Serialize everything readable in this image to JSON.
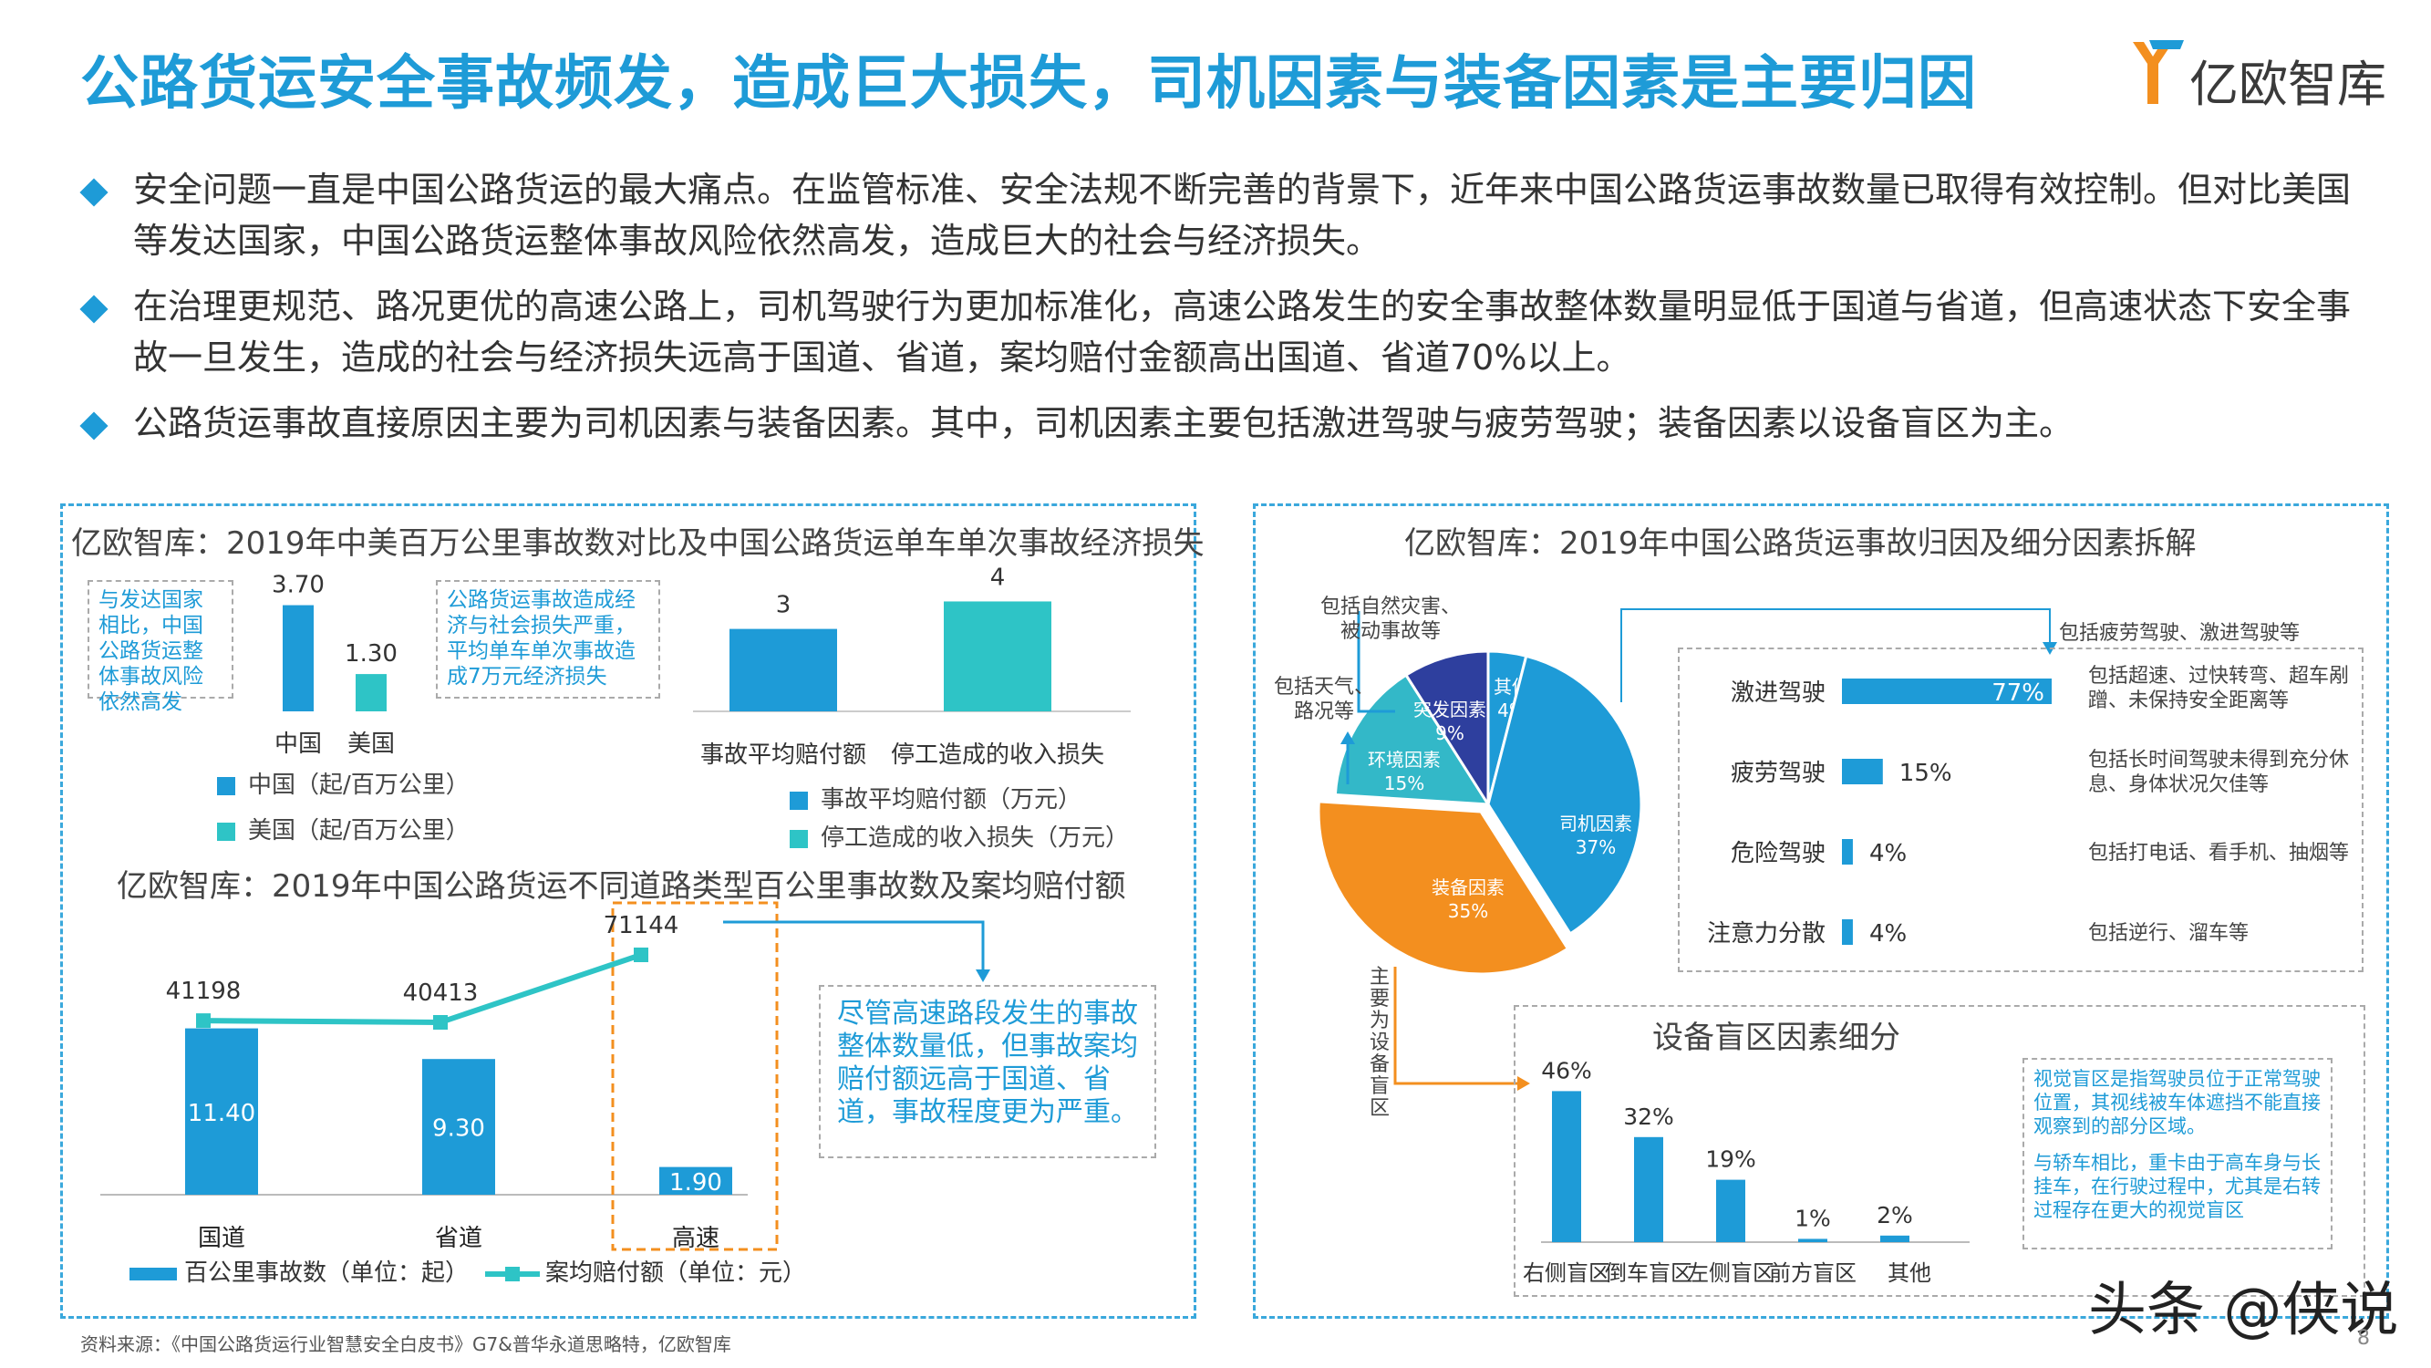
{
  "title": "公路货运安全事故频发，造成巨大损失，司机因素与装备因素是主要归因",
  "logo": {
    "text": "亿欧智库",
    "brand_color": "#1e9bd7"
  },
  "bullets": [
    "安全问题一直是中国公路货运的最大痛点。在监管标准、安全法规不断完善的背景下，近年来中国公路货运事故数量已取得有效控制。但对比美国等发达国家，中国公路货运整体事故风险依然高发，造成巨大的社会与经济损失。",
    "在治理更规范、路况更优的高速公路上，司机驾驶行为更加标准化，高速公路发生的安全事故整体数量明显低于国道与省道，但高速状态下安全事故一旦发生，造成的社会与经济损失远高于国道、省道，案均赔付金额高出国道、省道70%以上。",
    "公路货运事故直接原因主要为司机因素与装备因素。其中，司机因素主要包括激进驾驶与疲劳驾驶；装备因素以设备盲区为主。"
  ],
  "left_panel": {
    "title": "亿欧智库：2019年中美百万公里事故数对比及中国公路货运单车单次事故经济损失",
    "note1": "与发达国家相比，中国公路货运整体事故风险依然高发",
    "note2": "公路货运事故造成经济与社会损失严重，平均单车单次事故造成7万元经济损失",
    "subtitle": "亿欧智库：2019年中国公路货运不同道路类型百公里事故数及案均赔付额",
    "note3": "尽管高速路段发生的事故整体数量低，但事故案均赔付额远高于国道、省道，事故程度更为严重。"
  },
  "right_panel": {
    "title": "亿欧智库：2019年中国公路货运事故归因及细分因素拆解",
    "pie_callouts": {
      "natural": "包括自然灾害、被动事故等",
      "weather": "包括天气、路况等",
      "driver": "包括疲劳驾驶、激进驾驶等",
      "equipment": "主要为设备盲区"
    },
    "driver_descs": [
      "包括超速、过快转弯、超车剐蹭、未保持安全距离等",
      "包括长时间驾驶未得到充分休息、身体状况欠佳等",
      "包括打电话、看手机、抽烟等",
      "包括逆行、溜车等"
    ],
    "blind_title": "设备盲区因素细分",
    "blind_note1": "视觉盲区是指驾驶员位于正常驾驶位置，其视线被车体遮挡不能直接观察到的部分区域。",
    "blind_note2": "与轿车相比，重卡由于高车身与长挂车，在行驶过程中，尤其是右转过程存在更大的视觉盲区"
  },
  "source": "资料来源：《中国公路货运行业智慧安全白皮书》G7&普华永道思略特，亿欧智库",
  "watermark": "头条 @侠说",
  "page_number": "8",
  "colors": {
    "blue": "#1e9bd7",
    "teal": "#2ec4c6",
    "orange": "#f38f1f",
    "navy": "#2e3f9e",
    "cyan": "#33b8c8"
  },
  "chart_data": [
    {
      "id": "us_cn_accidents",
      "type": "bar",
      "categories": [
        "中国",
        "美国"
      ],
      "series": [
        {
          "name": "中国（起/百万公里）",
          "values": [
            3.7,
            null
          ]
        },
        {
          "name": "美国（起/百万公里）",
          "values": [
            null,
            1.3
          ]
        }
      ],
      "value_labels": [
        "3.70",
        "1.30"
      ],
      "ylim": [
        0,
        4.5
      ]
    },
    {
      "id": "loss_per_accident",
      "type": "bar",
      "categories": [
        "事故平均赔付额",
        "停工造成的收入损失"
      ],
      "series": [
        {
          "name": "事故平均赔付额（万元）",
          "values": [
            3,
            null
          ]
        },
        {
          "name": "停工造成的收入损失（万元）",
          "values": [
            null,
            4
          ]
        }
      ],
      "value_labels": [
        "3",
        "4"
      ],
      "ylim": [
        0,
        4.5
      ]
    },
    {
      "id": "road_types",
      "type": "bar",
      "categories": [
        "国道",
        "省道",
        "高速"
      ],
      "series": [
        {
          "name": "百公里事故数（单位：起）",
          "type": "bar",
          "values": [
            11.4,
            9.3,
            1.9
          ],
          "labels": [
            "11.40",
            "9.30",
            "1.90"
          ]
        },
        {
          "name": "案均赔付额（单位：元）",
          "type": "line",
          "values": [
            41198,
            40413,
            71144
          ],
          "labels": [
            "41198",
            "40413",
            "71144"
          ]
        }
      ],
      "ylim_bar": [
        0,
        13
      ],
      "ylim_line": [
        0,
        80000
      ]
    },
    {
      "id": "cause_pie",
      "type": "pie",
      "slices": [
        {
          "name": "司机因素",
          "value": 37,
          "label": "37%",
          "color": "#1e9bd7"
        },
        {
          "name": "装备因素",
          "value": 35,
          "label": "35%",
          "color": "#f38f1f"
        },
        {
          "name": "环境因素",
          "value": 15,
          "label": "15%",
          "color": "#33b8c8"
        },
        {
          "name": "突发因素",
          "value": 9,
          "label": "9%",
          "color": "#2e3f9e"
        },
        {
          "name": "其他",
          "value": 4,
          "label": "4%",
          "color": "#1e9bd7"
        }
      ]
    },
    {
      "id": "driver_factors",
      "type": "bar",
      "orientation": "horizontal",
      "categories": [
        "激进驾驶",
        "疲劳驾驶",
        "危险驾驶",
        "注意力分散"
      ],
      "values": [
        77,
        15,
        4,
        4
      ],
      "value_labels": [
        "77%",
        "15%",
        "4%",
        "4%"
      ],
      "xlim": [
        0,
        100
      ]
    },
    {
      "id": "blind_spots",
      "type": "bar",
      "categories": [
        "右侧盲区",
        "倒车盲区",
        "左侧盲区",
        "前方盲区",
        "其他"
      ],
      "values": [
        46,
        32,
        19,
        1,
        2
      ],
      "value_labels": [
        "46%",
        "32%",
        "19%",
        "1%",
        "2%"
      ],
      "ylim": [
        0,
        50
      ]
    }
  ]
}
